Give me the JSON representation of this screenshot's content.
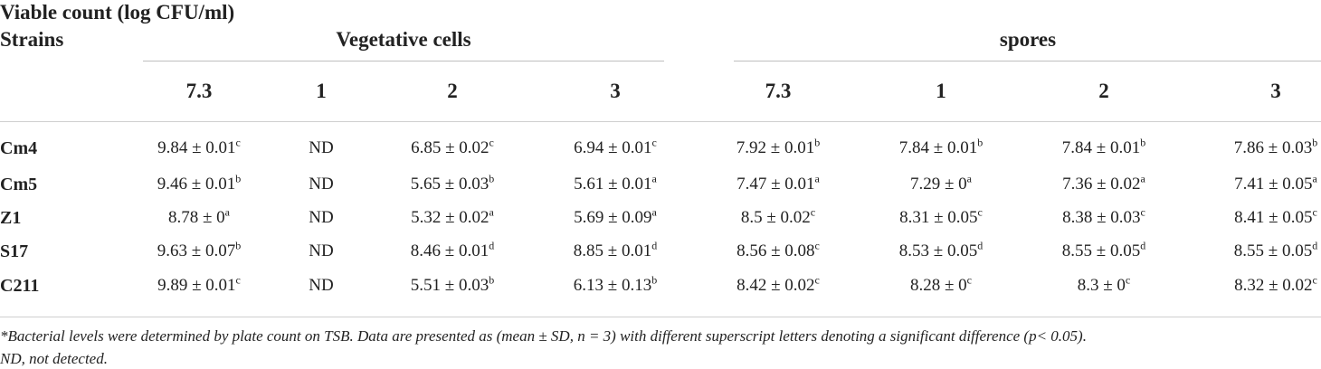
{
  "table": {
    "title": "Viable count (log CFU/ml)",
    "row_header": "Strains",
    "groups": [
      "Vegetative cells",
      "spores"
    ],
    "columns": [
      "7.3",
      "1",
      "2",
      "3",
      "7.3",
      "1",
      "2",
      "3"
    ],
    "rows": [
      {
        "strain": "Cm4",
        "cells": [
          {
            "v": "9.84 ± 0.01",
            "s": "c"
          },
          {
            "v": "ND",
            "s": ""
          },
          {
            "v": "6.85 ± 0.02",
            "s": "c"
          },
          {
            "v": "6.94 ± 0.01",
            "s": "c"
          },
          {
            "v": "7.92 ± 0.01",
            "s": "b"
          },
          {
            "v": "7.84 ± 0.01",
            "s": "b"
          },
          {
            "v": "7.84 ± 0.01",
            "s": "b"
          },
          {
            "v": "7.86 ± 0.03",
            "s": "b"
          }
        ]
      },
      {
        "strain": "Cm5",
        "cells": [
          {
            "v": "9.46 ± 0.01",
            "s": "b"
          },
          {
            "v": "ND",
            "s": ""
          },
          {
            "v": "5.65 ± 0.03",
            "s": "b"
          },
          {
            "v": "5.61 ± 0.01",
            "s": "a"
          },
          {
            "v": "7.47 ± 0.01",
            "s": "a"
          },
          {
            "v": "7.29 ± 0",
            "s": "a"
          },
          {
            "v": "7.36 ± 0.02",
            "s": "a"
          },
          {
            "v": "7.41 ± 0.05",
            "s": "a"
          }
        ]
      },
      {
        "strain": "Z1",
        "cells": [
          {
            "v": "8.78 ± 0",
            "s": "a"
          },
          {
            "v": "ND",
            "s": ""
          },
          {
            "v": "5.32 ± 0.02",
            "s": "a"
          },
          {
            "v": "5.69 ± 0.09",
            "s": "a"
          },
          {
            "v": "8.5 ± 0.02",
            "s": "c"
          },
          {
            "v": "8.31 ± 0.05",
            "s": "c"
          },
          {
            "v": "8.38 ± 0.03",
            "s": "c"
          },
          {
            "v": "8.41 ± 0.05",
            "s": "c"
          }
        ]
      },
      {
        "strain": "S17",
        "cells": [
          {
            "v": "9.63 ± 0.07",
            "s": "b"
          },
          {
            "v": "ND",
            "s": ""
          },
          {
            "v": "8.46 ± 0.01",
            "s": "d"
          },
          {
            "v": "8.85 ± 0.01",
            "s": "d"
          },
          {
            "v": "8.56 ± 0.08",
            "s": "c"
          },
          {
            "v": "8.53 ± 0.05",
            "s": "d"
          },
          {
            "v": "8.55 ± 0.05",
            "s": "d"
          },
          {
            "v": "8.55 ± 0.05",
            "s": "d"
          }
        ]
      },
      {
        "strain": "C211",
        "cells": [
          {
            "v": "9.89 ± 0.01",
            "s": "c"
          },
          {
            "v": "ND",
            "s": ""
          },
          {
            "v": "5.51 ± 0.03",
            "s": "b"
          },
          {
            "v": "6.13 ± 0.13",
            "s": "b"
          },
          {
            "v": "8.42 ± 0.02",
            "s": "c"
          },
          {
            "v": "8.28 ± 0",
            "s": "c"
          },
          {
            "v": "8.3 ± 0",
            "s": "c"
          },
          {
            "v": "8.32 ± 0.02",
            "s": "c"
          }
        ]
      }
    ],
    "footnotes": [
      "*Bacterial levels were determined by plate count on TSB. Data are presented as (mean ± SD, n = 3) with different superscript letters denoting a significant difference (p< 0.05).",
      "ND, not detected."
    ]
  }
}
